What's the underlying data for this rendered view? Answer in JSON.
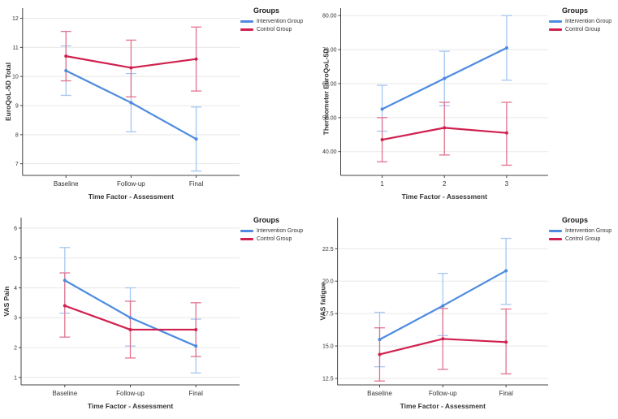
{
  "page": {
    "background": "#ffffff"
  },
  "colors": {
    "intervention_line": "#4D8BE0",
    "intervention_error": "#A5C7F0",
    "control_line": "#D0204E",
    "control_error": "#E2738F",
    "gridline": "#E8E8E8",
    "axis": "#444444",
    "text": "#333333"
  },
  "chart_data": [
    {
      "type": "line",
      "title": "",
      "xlabel": "Time Factor - Assessment",
      "ylabel": "EuroQoL-5D Total",
      "categories": [
        "Baseline",
        "Follow-up",
        "Final"
      ],
      "yticks": [
        7,
        8,
        9,
        10,
        11,
        12
      ],
      "ytick_labels": [
        "7",
        "8",
        "9",
        "10",
        "11",
        "12"
      ],
      "ylim": [
        6.6,
        12.35
      ],
      "grid": true,
      "legend_title": "Groups",
      "legend_position": "top-right",
      "series": [
        {
          "name": "Intervention Group",
          "color_key": "intervention_line",
          "error_color_key": "intervention_error",
          "values": [
            10.2,
            9.1,
            7.85
          ],
          "ci_low": [
            9.35,
            8.1,
            6.75
          ],
          "ci_high": [
            11.05,
            10.1,
            8.95
          ]
        },
        {
          "name": "Control Group",
          "color_key": "control_line",
          "error_color_key": "control_error",
          "values": [
            10.7,
            10.3,
            10.6
          ],
          "ci_low": [
            9.85,
            9.3,
            9.5
          ],
          "ci_high": [
            11.55,
            11.25,
            11.7
          ]
        }
      ]
    },
    {
      "type": "line",
      "title": "",
      "xlabel": "Time Factor - Assessment",
      "ylabel": "Thermometer EuroQoL-5D",
      "categories": [
        "1",
        "2",
        "3"
      ],
      "yticks": [
        40,
        50,
        60,
        70,
        80
      ],
      "ytick_labels": [
        "40.00",
        "50.00",
        "60.00",
        "70.00",
        "80.00"
      ],
      "ylim": [
        33,
        82.2
      ],
      "grid": true,
      "legend_title": "Groups",
      "legend_position": "top-right",
      "series": [
        {
          "name": "Intervention Group",
          "color_key": "intervention_line",
          "error_color_key": "intervention_error",
          "values": [
            52.5,
            61.5,
            70.5
          ],
          "ci_low": [
            46.0,
            53.5,
            61.0
          ],
          "ci_high": [
            59.5,
            69.5,
            80.0
          ]
        },
        {
          "name": "Control Group",
          "color_key": "control_line",
          "error_color_key": "control_error",
          "values": [
            43.5,
            47.0,
            45.5
          ],
          "ci_low": [
            37.0,
            39.0,
            36.0
          ],
          "ci_high": [
            50.0,
            54.5,
            54.5
          ]
        }
      ]
    },
    {
      "type": "line",
      "title": "",
      "xlabel": "Time Factor - Assessment",
      "ylabel": "VAS Pain",
      "categories": [
        "Baseline",
        "Follow-up",
        "Final"
      ],
      "yticks": [
        1,
        2,
        3,
        4,
        5,
        6
      ],
      "ytick_labels": [
        "1",
        "2",
        "3",
        "4",
        "5",
        "6"
      ],
      "ylim": [
        0.75,
        6.35
      ],
      "grid": true,
      "legend_title": "Groups",
      "legend_position": "top-right",
      "series": [
        {
          "name": "Intervention Group",
          "color_key": "intervention_line",
          "error_color_key": "intervention_error",
          "values": [
            4.25,
            3.0,
            2.05
          ],
          "ci_low": [
            3.15,
            2.05,
            1.15
          ],
          "ci_high": [
            5.35,
            4.0,
            2.95
          ]
        },
        {
          "name": "Control Group",
          "color_key": "control_line",
          "error_color_key": "control_error",
          "values": [
            3.4,
            2.6,
            2.6
          ],
          "ci_low": [
            2.35,
            1.65,
            1.7
          ],
          "ci_high": [
            4.5,
            3.55,
            3.5
          ]
        }
      ]
    },
    {
      "type": "line",
      "title": "",
      "xlabel": "Time Factor - Assessment",
      "ylabel": "VAS fatigue",
      "categories": [
        "Baseline",
        "Follow-up",
        "Final"
      ],
      "yticks": [
        12.5,
        15.0,
        17.5,
        20.0,
        22.5
      ],
      "ytick_labels": [
        "12.5",
        "15.0",
        "17.5",
        "20.0",
        "22.5"
      ],
      "ylim": [
        12.0,
        24.9
      ],
      "grid": true,
      "legend_title": "Groups",
      "legend_position": "top-right",
      "series": [
        {
          "name": "Intervention Group",
          "color_key": "intervention_line",
          "error_color_key": "intervention_error",
          "values": [
            15.5,
            18.1,
            20.8
          ],
          "ci_low": [
            13.4,
            15.8,
            18.2
          ],
          "ci_high": [
            17.6,
            20.6,
            23.3
          ]
        },
        {
          "name": "Control Group",
          "color_key": "control_line",
          "error_color_key": "control_error",
          "values": [
            14.35,
            15.55,
            15.3
          ],
          "ci_low": [
            12.3,
            13.2,
            12.85
          ],
          "ci_high": [
            16.4,
            17.9,
            17.85
          ]
        }
      ]
    }
  ]
}
